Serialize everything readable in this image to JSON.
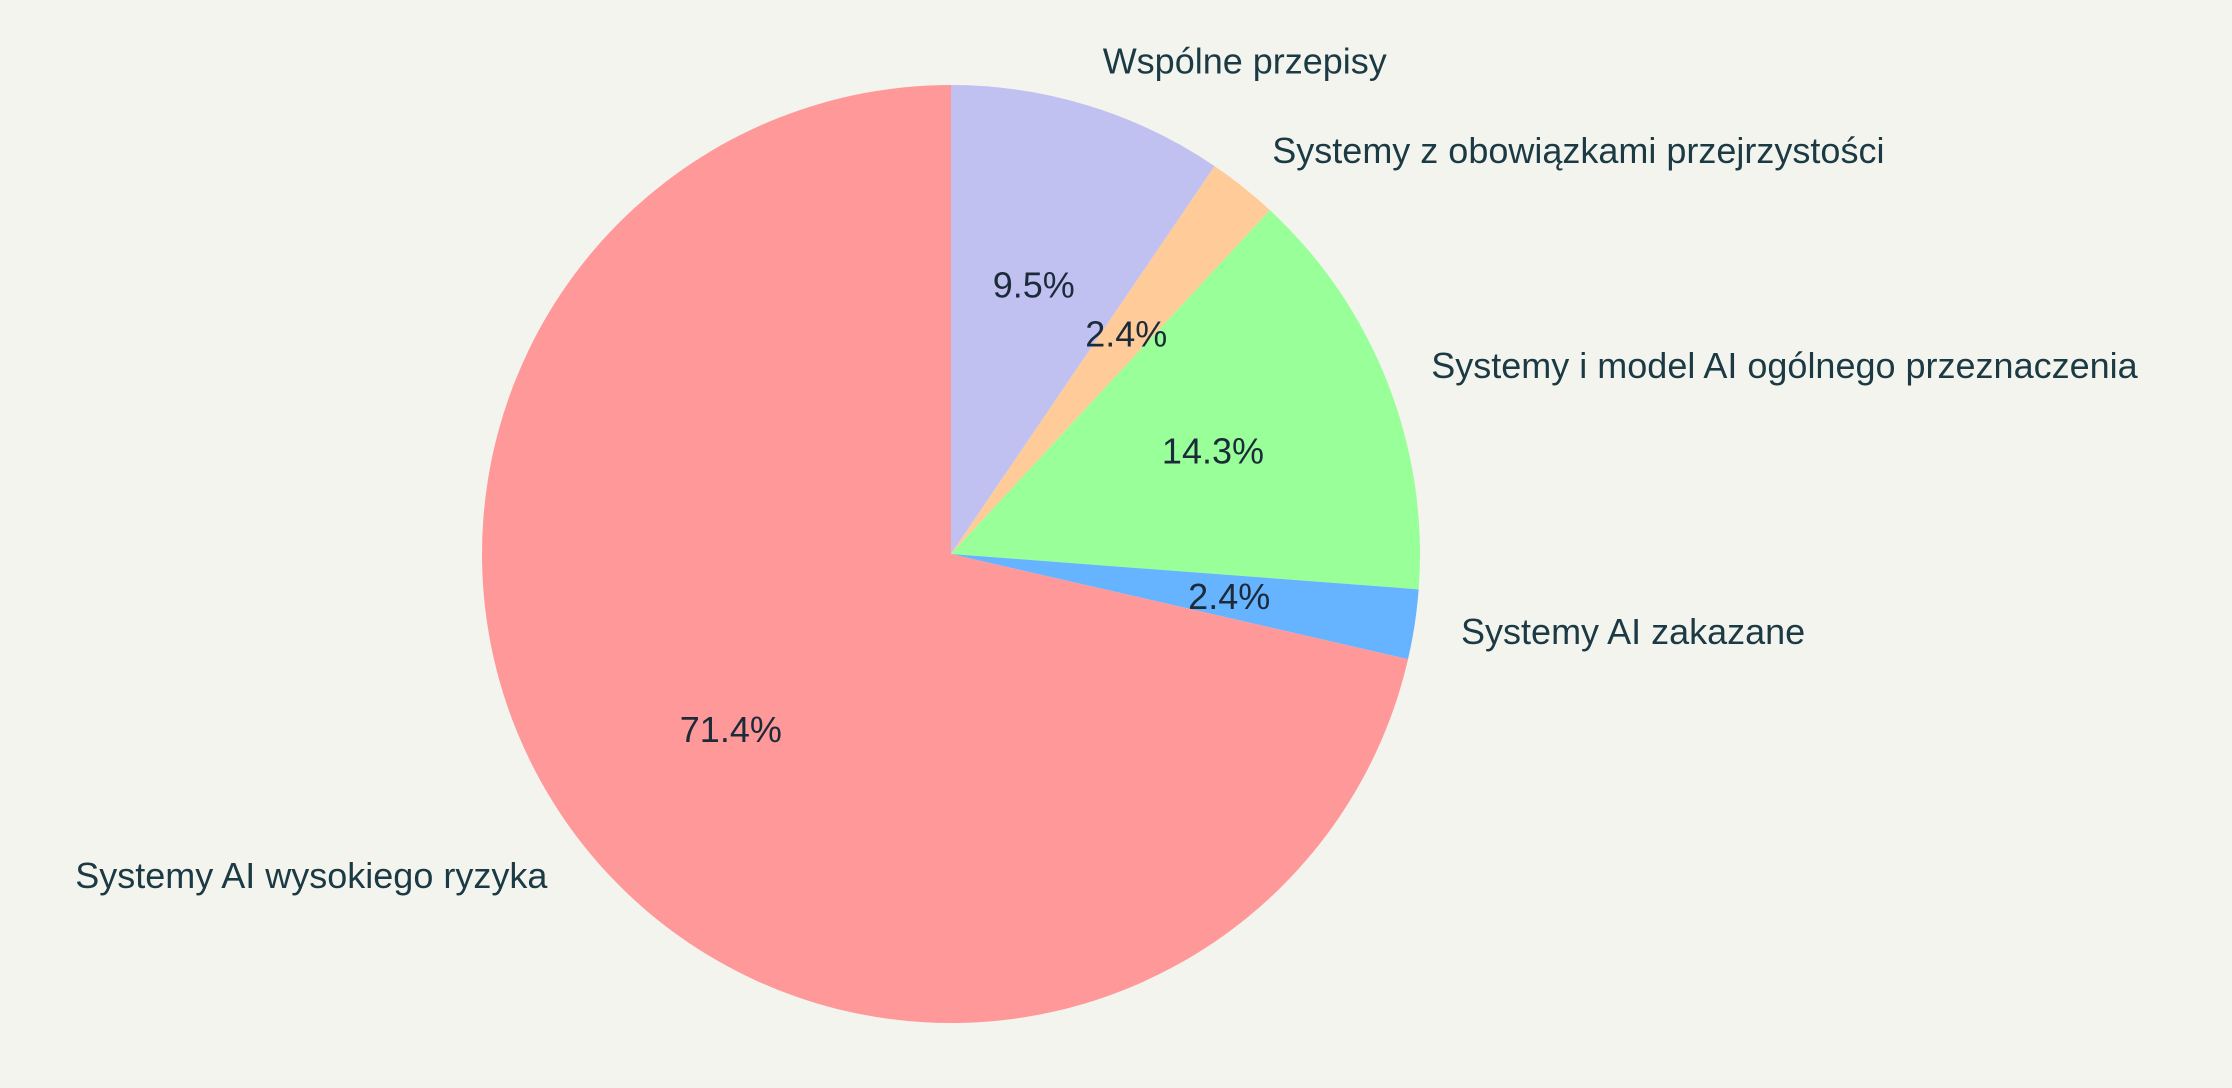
{
  "chart_data": {
    "type": "pie",
    "title": "",
    "start_angle": "top",
    "direction": "clockwise",
    "legend": "none",
    "slices": [
      {
        "label": "Wspólne przepisy",
        "value": 9.5,
        "pct_label": "9.5%",
        "color": "#c1c1f1"
      },
      {
        "label": "Systemy z obowiązkami przejrzystości",
        "value": 2.4,
        "pct_label": "2.4%",
        "color": "#ffcc99"
      },
      {
        "label": "Systemy i model AI ogólnego przeznaczenia",
        "value": 14.3,
        "pct_label": "14.3%",
        "color": "#99ff99"
      },
      {
        "label": "Systemy AI zakazane",
        "value": 2.4,
        "pct_label": "2.4%",
        "color": "#66b3ff"
      },
      {
        "label": "Systemy AI wysokiego ryzyka",
        "value": 71.4,
        "pct_label": "71.4%",
        "color": "#ff9999"
      }
    ]
  }
}
